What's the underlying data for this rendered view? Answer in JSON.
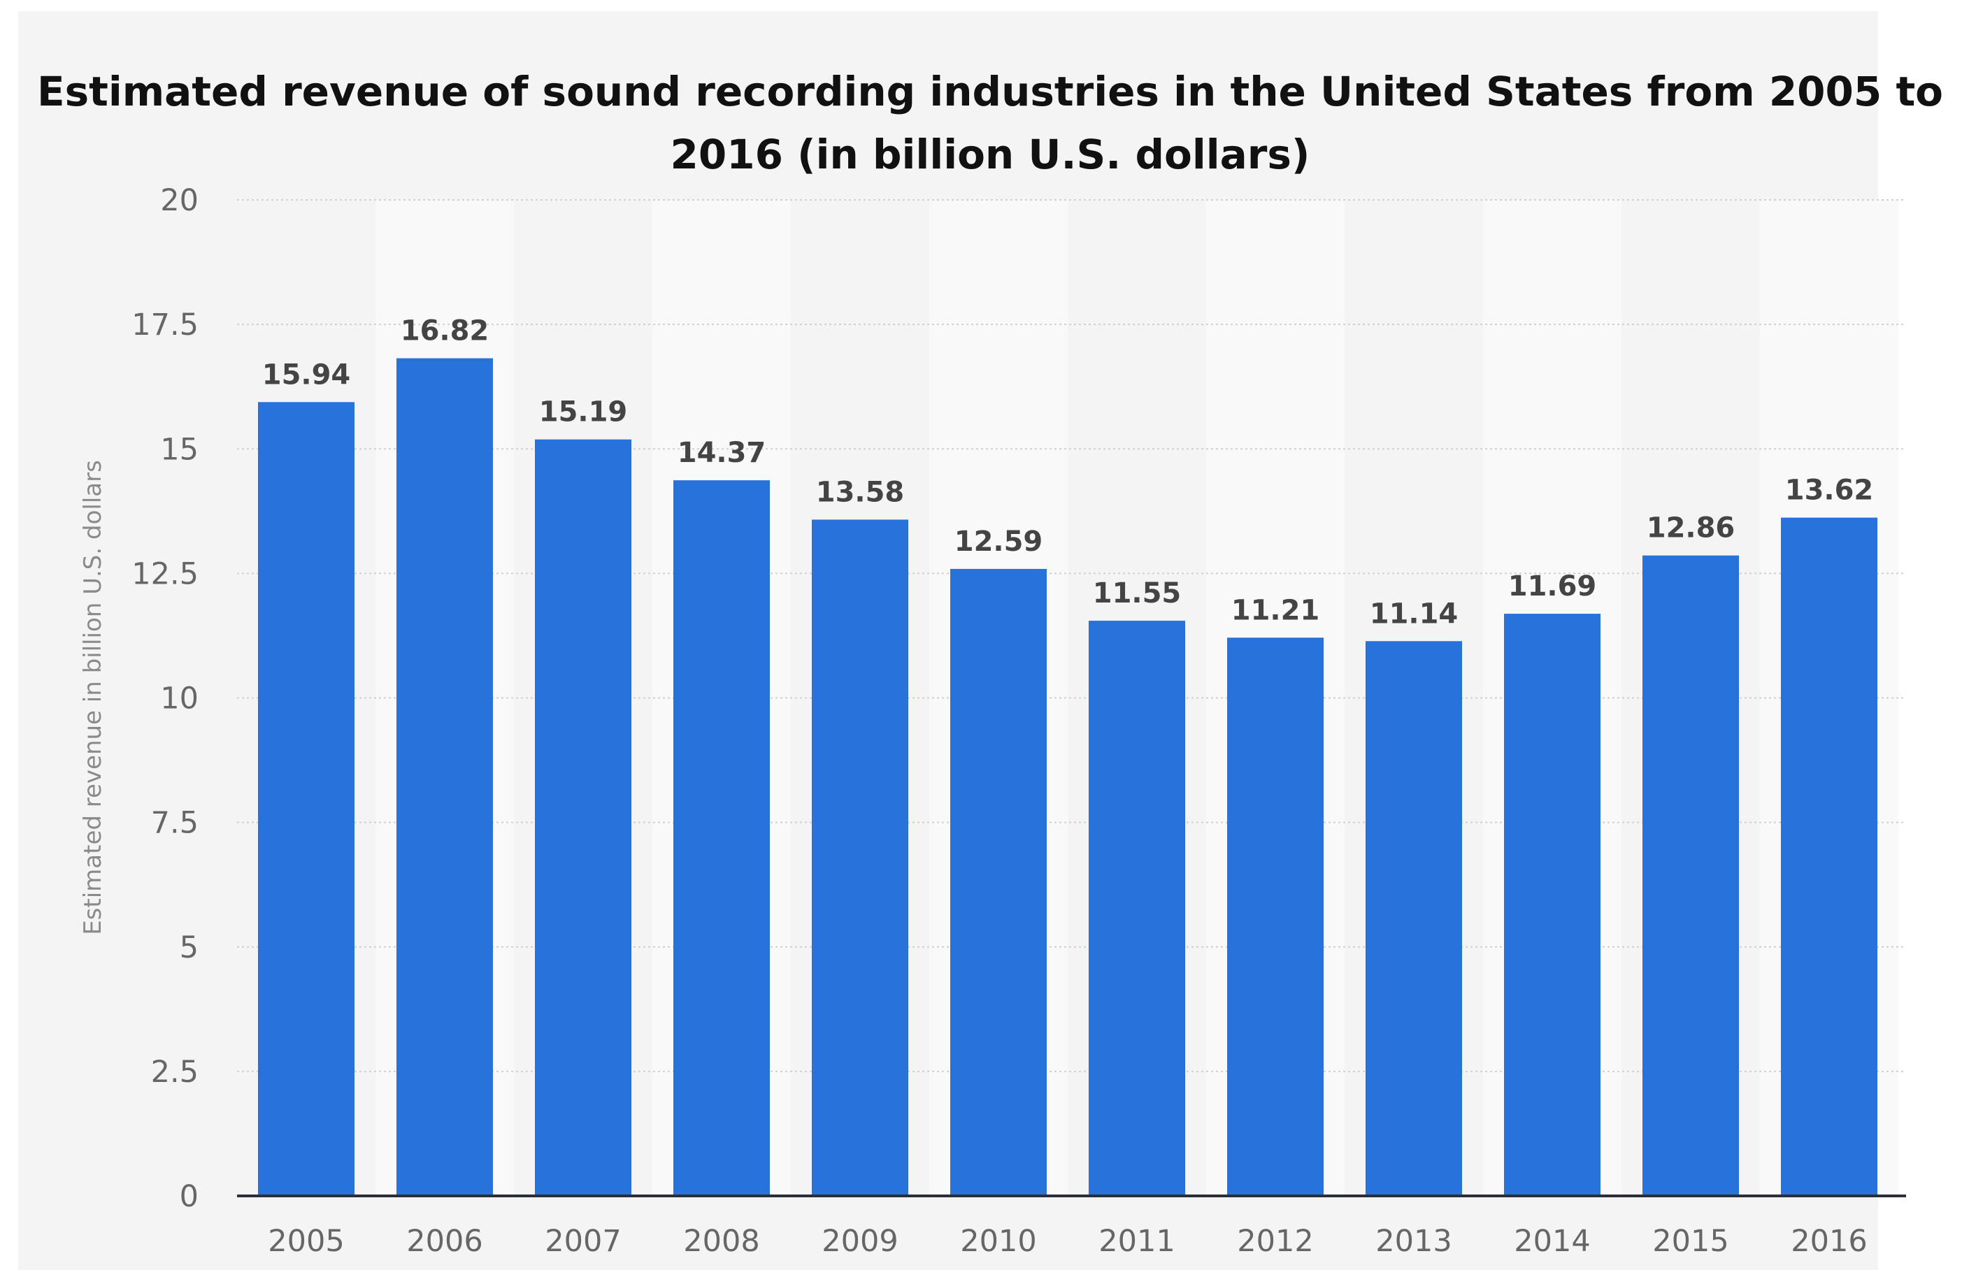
{
  "chart_data": {
    "type": "bar",
    "title": "Estimated revenue of sound recording industries in the United States from 2005 to 2016 (in billion U.S. dollars)",
    "xlabel": "",
    "ylabel": "Estimated revenue in billion U.S. dollars",
    "categories": [
      "2005",
      "2006",
      "2007",
      "2008",
      "2009",
      "2010",
      "2011",
      "2012",
      "2013",
      "2014",
      "2015",
      "2016"
    ],
    "values": [
      15.94,
      16.82,
      15.19,
      14.37,
      13.58,
      12.59,
      11.55,
      11.21,
      11.14,
      11.69,
      12.86,
      13.62
    ],
    "value_labels": [
      "15.94",
      "16.82",
      "15.19",
      "14.37",
      "13.58",
      "12.59",
      "11.55",
      "11.21",
      "11.14",
      "11.69",
      "12.86",
      "13.62"
    ],
    "yticks": [
      "0",
      "2.5",
      "5",
      "7.5",
      "10",
      "12.5",
      "15",
      "17.5",
      "20"
    ],
    "ylim": [
      0,
      20
    ],
    "grid": true,
    "legend": "none",
    "colors": {
      "bar": "#2872dc",
      "card_background": "#f4f4f4",
      "band_light": "#f9f9f9",
      "gridline": "#d0d0d0",
      "baseline": "#2b2f3a",
      "title_text": "#111111",
      "tick_text": "#666666",
      "value_text": "#444444",
      "axis_title_text": "#8a8a8a"
    }
  }
}
